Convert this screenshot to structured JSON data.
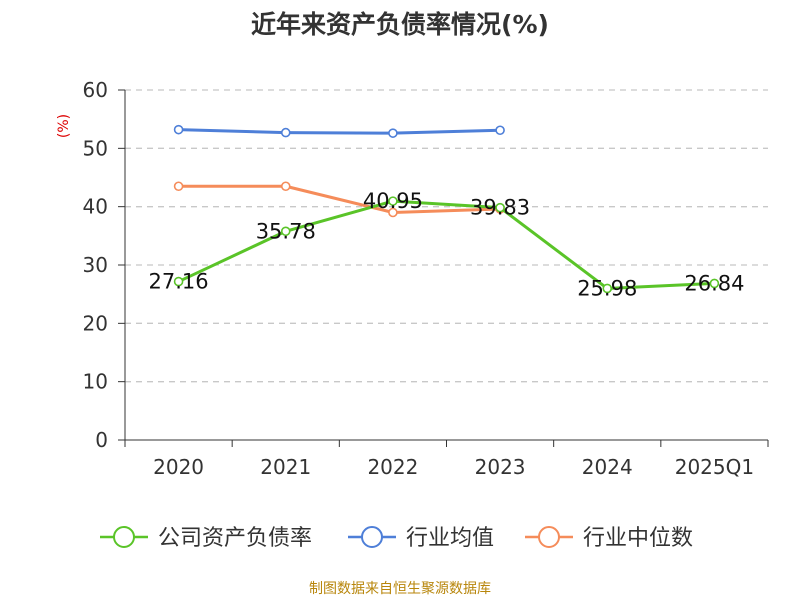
{
  "chart_data": {
    "type": "line",
    "title": "近年来资产负债率情况(%)",
    "ylabel": "(%)",
    "categories": [
      "2020",
      "2021",
      "2022",
      "2023",
      "2024",
      "2025Q1"
    ],
    "ylim": [
      0,
      60
    ],
    "yticks": [
      0,
      10,
      20,
      30,
      40,
      50,
      60
    ],
    "grid": true,
    "legend_position": "bottom",
    "series": [
      {
        "name": "公司资产负债率",
        "color": "#5ac428",
        "values": [
          27.16,
          35.78,
          40.95,
          39.83,
          25.98,
          26.84
        ],
        "labels": [
          "27.16",
          "35.78",
          "40.95",
          "39.83",
          "25.98",
          "26.84"
        ]
      },
      {
        "name": "行业均值",
        "color": "#4e7fd8",
        "values": [
          53.2,
          52.7,
          52.6,
          53.1,
          null,
          null
        ]
      },
      {
        "name": "行业中位数",
        "color": "#f58c5a",
        "values": [
          43.5,
          43.5,
          39.0,
          39.6,
          null,
          null
        ]
      }
    ]
  },
  "source": "制图数据来自恒生聚源数据库",
  "colors": {
    "title": "#333333",
    "axis": "#333333",
    "grid": "#c8c8c8",
    "ylabel": "#dd0000",
    "source": "#b8860b"
  }
}
